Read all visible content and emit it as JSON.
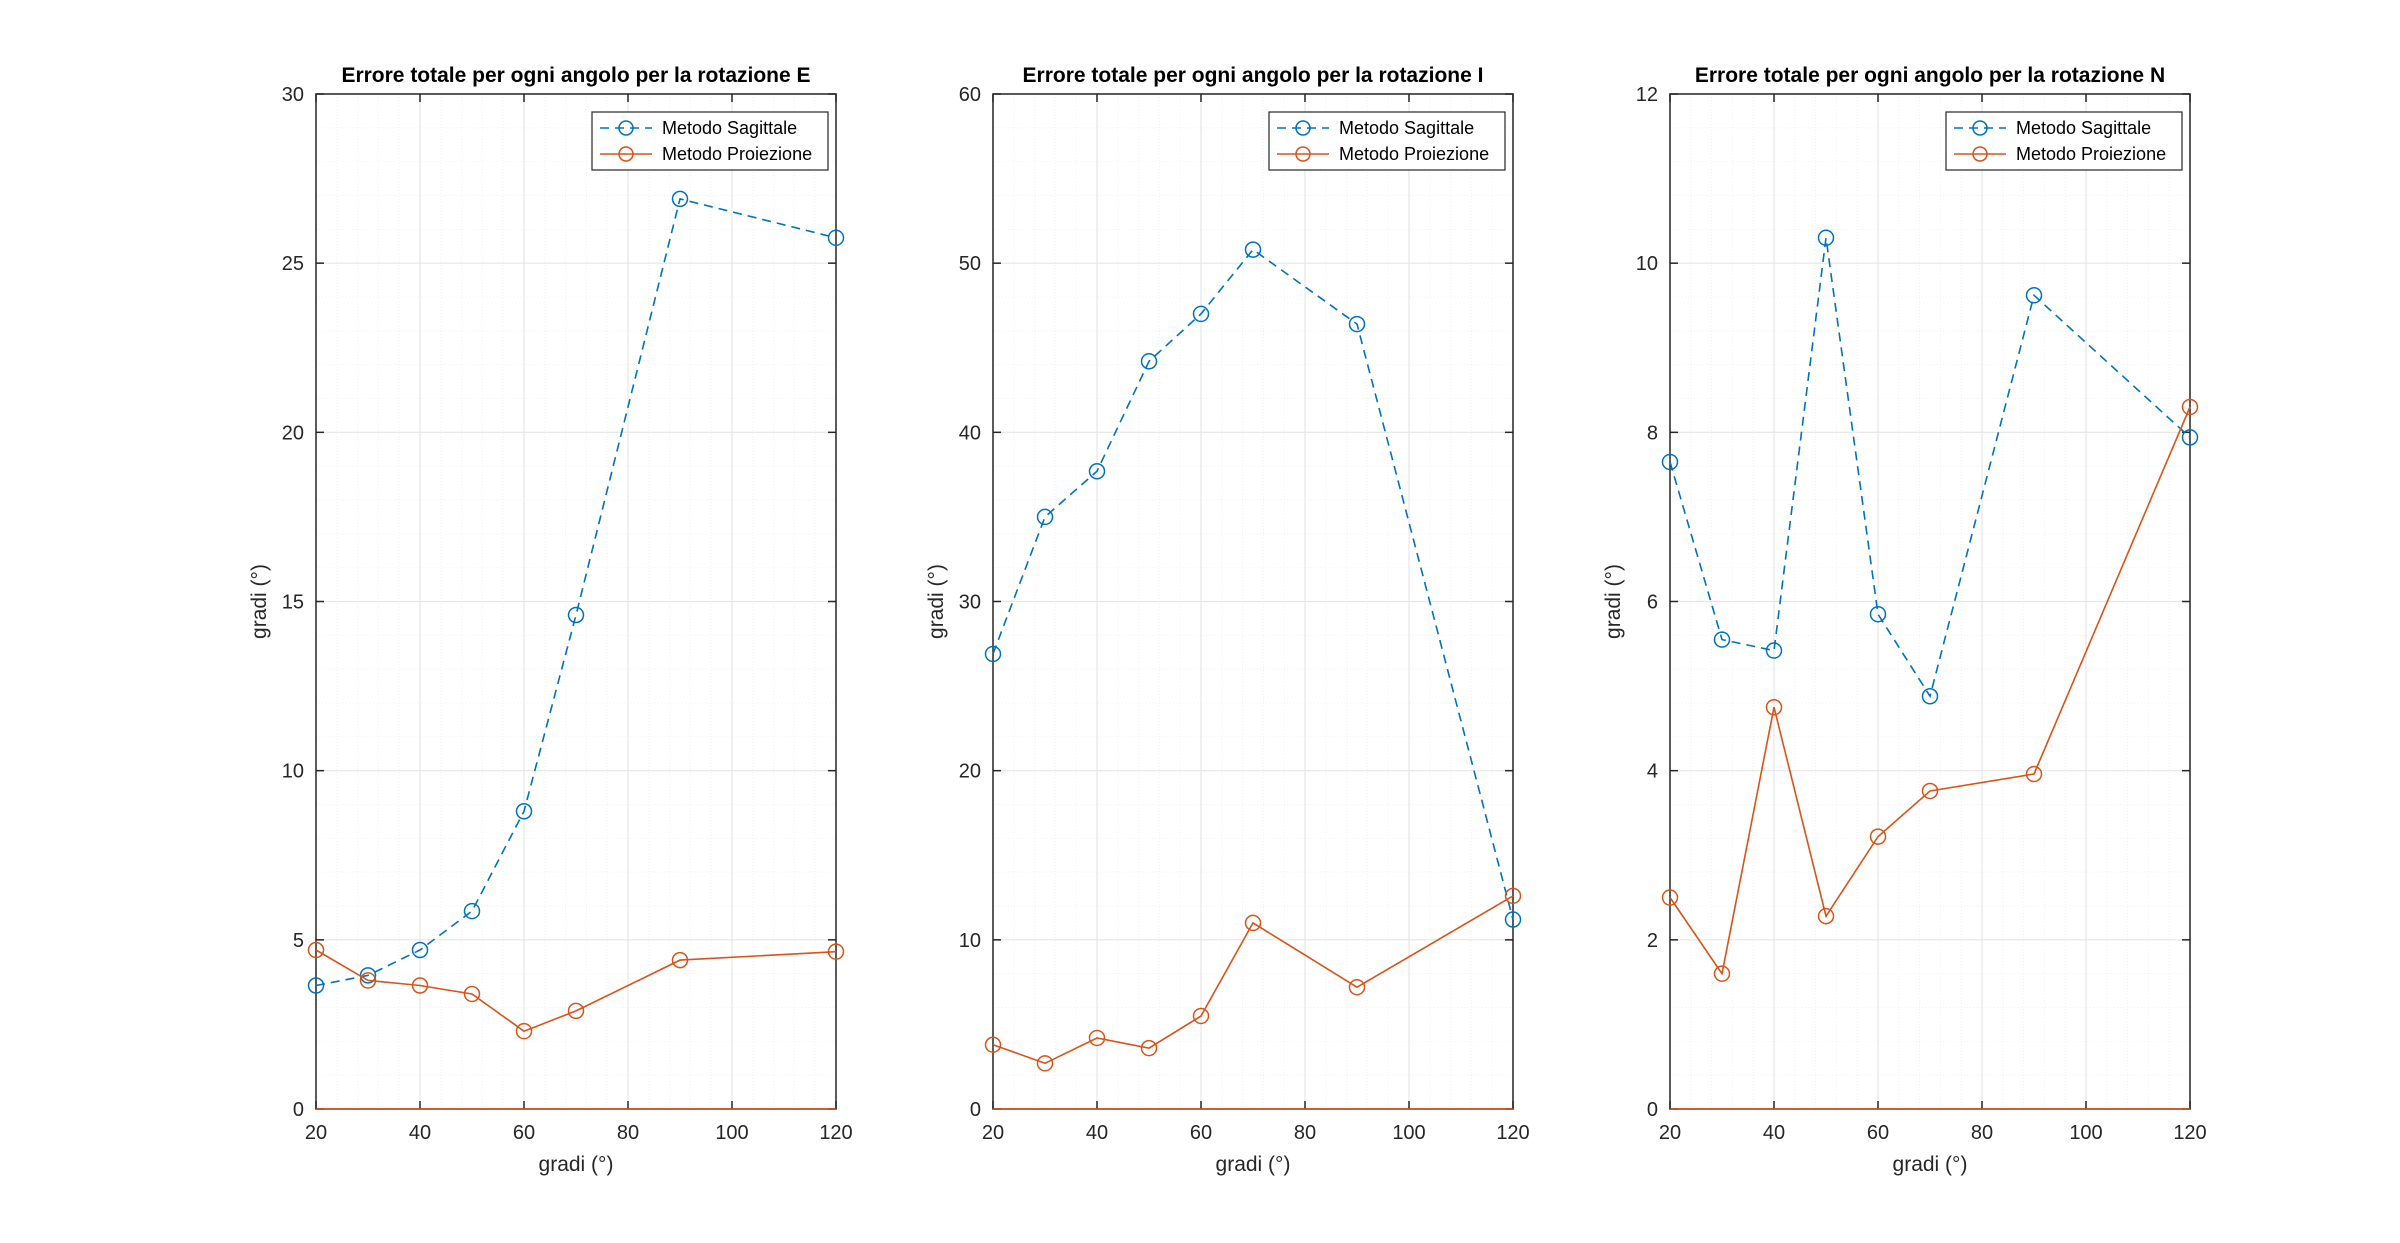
{
  "chart_data": [
    {
      "type": "line",
      "title": "Errore totale per ogni angolo per la rotazione E",
      "xlabel": "gradi (°)",
      "ylabel": "gradi (°)",
      "xlim": [
        20,
        120
      ],
      "ylim": [
        0,
        30
      ],
      "xticks": [
        20,
        40,
        60,
        80,
        100,
        120
      ],
      "yticks": [
        0,
        5,
        10,
        15,
        20,
        25,
        30
      ],
      "grid": true,
      "minor_grid": true,
      "legend_position": "top-right",
      "x": [
        20,
        30,
        40,
        50,
        60,
        70,
        90,
        120
      ],
      "series": [
        {
          "name": "Metodo Sagittale",
          "values": [
            3.65,
            3.95,
            4.7,
            5.85,
            8.8,
            14.6,
            26.9,
            25.75
          ],
          "color": "#0072BD",
          "line_style": "dashed",
          "marker": "circle"
        },
        {
          "name": "Metodo Proiezione",
          "values": [
            4.7,
            3.8,
            3.65,
            3.4,
            2.3,
            2.9,
            4.4,
            4.65
          ],
          "color": "#D95319",
          "line_style": "solid",
          "marker": "circle"
        }
      ]
    },
    {
      "type": "line",
      "title": "Errore totale per ogni angolo per la rotazione I",
      "xlabel": "gradi (°)",
      "ylabel": "gradi (°)",
      "xlim": [
        20,
        120
      ],
      "ylim": [
        0,
        60
      ],
      "xticks": [
        20,
        40,
        60,
        80,
        100,
        120
      ],
      "yticks": [
        0,
        10,
        20,
        30,
        40,
        50,
        60
      ],
      "grid": true,
      "minor_grid": true,
      "legend_position": "top-right",
      "x": [
        20,
        30,
        40,
        50,
        60,
        70,
        90,
        120
      ],
      "series": [
        {
          "name": "Metodo Sagittale",
          "values": [
            26.9,
            35.0,
            37.7,
            44.2,
            47.0,
            50.8,
            46.4,
            11.2
          ],
          "color": "#0072BD",
          "line_style": "dashed",
          "marker": "circle"
        },
        {
          "name": "Metodo Proiezione",
          "values": [
            3.8,
            2.7,
            4.2,
            3.6,
            5.5,
            11.0,
            7.2,
            12.6
          ],
          "color": "#D95319",
          "line_style": "solid",
          "marker": "circle"
        }
      ]
    },
    {
      "type": "line",
      "title": "Errore totale per ogni angolo per la rotazione N",
      "xlabel": "gradi (°)",
      "ylabel": "gradi (°)",
      "xlim": [
        20,
        120
      ],
      "ylim": [
        0,
        12
      ],
      "xticks": [
        20,
        40,
        60,
        80,
        100,
        120
      ],
      "yticks": [
        0,
        2,
        4,
        6,
        8,
        10,
        12
      ],
      "grid": true,
      "minor_grid": true,
      "legend_position": "top-right",
      "x": [
        20,
        30,
        40,
        50,
        60,
        70,
        90,
        120
      ],
      "series": [
        {
          "name": "Metodo Sagittale",
          "values": [
            7.65,
            5.55,
            5.42,
            10.3,
            5.85,
            4.88,
            9.62,
            7.94
          ],
          "color": "#0072BD",
          "line_style": "dashed",
          "marker": "circle"
        },
        {
          "name": "Metodo Proiezione",
          "values": [
            2.5,
            1.6,
            4.75,
            2.28,
            3.22,
            3.76,
            3.96,
            8.3
          ],
          "color": "#D95319",
          "line_style": "solid",
          "marker": "circle"
        }
      ]
    }
  ]
}
